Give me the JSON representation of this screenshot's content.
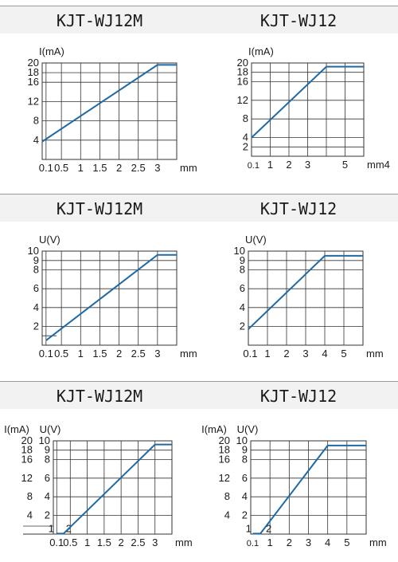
{
  "section_titles": [
    [
      "KJT-WJ12M",
      "KJT-WJ12"
    ],
    [
      "KJT-WJ12M",
      "KJT-WJ12"
    ],
    [
      "KJT-WJ12M",
      "KJT-WJ12"
    ]
  ],
  "colors": {
    "line": "#1f6aa5",
    "grid": "#333333",
    "band": "#f2f2f2"
  },
  "chart_data": [
    {
      "type": "line",
      "title": "KJT-WJ12M",
      "xlabel": "mm",
      "ylabel": "I(mA)",
      "xlim": [
        0,
        3.5
      ],
      "ylim": [
        0,
        20
      ],
      "xticks": [
        {
          "v": 0.1,
          "t": "0.1"
        },
        {
          "v": 0.5,
          "t": "0.5"
        },
        {
          "v": 1,
          "t": "1"
        },
        {
          "v": 1.5,
          "t": "1.5"
        },
        {
          "v": 2,
          "t": "2"
        },
        {
          "v": 2.5,
          "t": "2.5"
        },
        {
          "v": 3,
          "t": "3"
        }
      ],
      "yticks": [
        {
          "v": 4,
          "t": "4"
        },
        {
          "v": 8,
          "t": "8"
        },
        {
          "v": 12,
          "t": "12"
        },
        {
          "v": 16,
          "t": "16"
        },
        {
          "v": 18,
          "t": "18"
        },
        {
          "v": 20,
          "t": "20"
        }
      ],
      "series": [
        {
          "x": [
            0,
            3,
            3.5
          ],
          "y": [
            3.7,
            19.6,
            19.6
          ]
        }
      ]
    },
    {
      "type": "line",
      "title": "KJT-WJ12",
      "xlabel": "mm4",
      "ylabel": "I(mA)",
      "xlim": [
        0,
        6
      ],
      "ylim": [
        0,
        20
      ],
      "xticks": [
        {
          "v": 0.1,
          "t": "0.1",
          "small": true
        },
        {
          "v": 1,
          "t": "1"
        },
        {
          "v": 2,
          "t": "2"
        },
        {
          "v": 3,
          "t": "3"
        },
        {
          "v": 5,
          "t": "5"
        }
      ],
      "yticks": [
        {
          "v": 2,
          "t": "2"
        },
        {
          "v": 4,
          "t": "4"
        },
        {
          "v": 8,
          "t": "8"
        },
        {
          "v": 12,
          "t": "12"
        },
        {
          "v": 16,
          "t": "16"
        },
        {
          "v": 18,
          "t": "18"
        },
        {
          "v": 20,
          "t": "20"
        }
      ],
      "series": [
        {
          "x": [
            0,
            4,
            6
          ],
          "y": [
            4,
            19.2,
            19.2
          ]
        }
      ]
    },
    {
      "type": "line",
      "title": "KJT-WJ12M",
      "xlabel": "mm",
      "ylabel": "U(V)",
      "xlim": [
        0,
        3.5
      ],
      "ylim": [
        0,
        10
      ],
      "xticks": [
        {
          "v": 0.1,
          "t": "0.1"
        },
        {
          "v": 0.5,
          "t": "0.5"
        },
        {
          "v": 1,
          "t": "1"
        },
        {
          "v": 1.5,
          "t": "1.5"
        },
        {
          "v": 2,
          "t": "2"
        },
        {
          "v": 2.5,
          "t": "2.5"
        },
        {
          "v": 3,
          "t": "3"
        }
      ],
      "yticks": [
        {
          "v": 2,
          "t": "2"
        },
        {
          "v": 4,
          "t": "4"
        },
        {
          "v": 6,
          "t": "6"
        },
        {
          "v": 8,
          "t": "8"
        },
        {
          "v": 9,
          "t": "9"
        },
        {
          "v": 10,
          "t": "10"
        }
      ],
      "series": [
        {
          "x": [
            0.1,
            3,
            3.5
          ],
          "y": [
            0.5,
            9.6,
            9.6
          ]
        }
      ]
    },
    {
      "type": "line",
      "title": "KJT-WJ12",
      "xlabel": "mm",
      "ylabel": "U(V)",
      "xlim": [
        0,
        6
      ],
      "ylim": [
        0,
        10
      ],
      "xticks": [
        {
          "v": 0.1,
          "t": "0.1"
        },
        {
          "v": 1,
          "t": "1"
        },
        {
          "v": 2,
          "t": "2"
        },
        {
          "v": 3,
          "t": "3"
        },
        {
          "v": 4,
          "t": "4"
        },
        {
          "v": 5,
          "t": "5"
        }
      ],
      "yticks": [
        {
          "v": 2,
          "t": "2"
        },
        {
          "v": 4,
          "t": "4"
        },
        {
          "v": 6,
          "t": "6"
        },
        {
          "v": 8,
          "t": "8"
        },
        {
          "v": 9,
          "t": "9"
        },
        {
          "v": 10,
          "t": "10"
        }
      ],
      "series": [
        {
          "x": [
            0,
            4,
            6
          ],
          "y": [
            1.7,
            9.5,
            9.5
          ]
        }
      ]
    },
    {
      "type": "line",
      "title": "KJT-WJ12M",
      "xlabel": "mm",
      "ylabel": "I(mA)",
      "ylabel2": "U(V)",
      "xlim": [
        0,
        3.5
      ],
      "ylim": [
        0,
        10
      ],
      "xticks": [
        {
          "v": 0.1,
          "t": "0.1"
        },
        {
          "v": 0.5,
          "t": "0.5"
        },
        {
          "v": 1,
          "t": "1"
        },
        {
          "v": 1.5,
          "t": "1.5"
        },
        {
          "v": 2,
          "t": "2"
        },
        {
          "v": 2.5,
          "t": "2.5"
        },
        {
          "v": 3,
          "t": "3"
        }
      ],
      "yticks": [
        {
          "v": 2,
          "t": "2"
        },
        {
          "v": 4,
          "t": "4"
        },
        {
          "v": 6,
          "t": "6"
        },
        {
          "v": 8,
          "t": "8"
        },
        {
          "v": 9,
          "t": "9"
        },
        {
          "v": 10,
          "t": "10"
        }
      ],
      "yticks_outer": [
        {
          "v": 2,
          "t": "4"
        },
        {
          "v": 4,
          "t": "8"
        },
        {
          "v": 6,
          "t": "12"
        },
        {
          "v": 8,
          "t": "16"
        },
        {
          "v": 9,
          "t": "18"
        },
        {
          "v": 10,
          "t": "20"
        }
      ],
      "inner_labels": [
        {
          "x": 0.03,
          "y": 0.05,
          "t": "1"
        },
        {
          "x": 0.55,
          "y": 0.05,
          "t": "2"
        }
      ],
      "series": [
        {
          "x": [
            0.1,
            0.3,
            3,
            3.5
          ],
          "y": [
            0.05,
            0.05,
            9.6,
            9.6
          ]
        }
      ]
    },
    {
      "type": "line",
      "title": "KJT-WJ12",
      "xlabel": "mm",
      "ylabel": "I(mA)",
      "ylabel2": "U(V)",
      "xlim": [
        0,
        6
      ],
      "ylim": [
        0,
        10
      ],
      "xticks": [
        {
          "v": 0.1,
          "t": "0.1",
          "small": true
        },
        {
          "v": 1,
          "t": "1"
        },
        {
          "v": 2,
          "t": "2"
        },
        {
          "v": 3,
          "t": "3"
        },
        {
          "v": 4,
          "t": "4"
        },
        {
          "v": 5,
          "t": "5"
        }
      ],
      "yticks": [
        {
          "v": 2,
          "t": "2"
        },
        {
          "v": 4,
          "t": "4"
        },
        {
          "v": 6,
          "t": "6"
        },
        {
          "v": 8,
          "t": "8"
        },
        {
          "v": 9,
          "t": "9"
        },
        {
          "v": 10,
          "t": "10"
        }
      ],
      "yticks_outer": [
        {
          "v": 2,
          "t": "4"
        },
        {
          "v": 4,
          "t": "8"
        },
        {
          "v": 6,
          "t": "12"
        },
        {
          "v": 8,
          "t": "16"
        },
        {
          "v": 9,
          "t": "18"
        },
        {
          "v": 10,
          "t": "20"
        }
      ],
      "inner_labels": [
        {
          "x": 0.05,
          "y": 0.05,
          "t": "1"
        },
        {
          "x": 1.1,
          "y": 0.05,
          "t": "2"
        }
      ],
      "series": [
        {
          "x": [
            0.1,
            0.5,
            4,
            6
          ],
          "y": [
            0.05,
            0.05,
            9.5,
            9.5
          ]
        }
      ]
    }
  ]
}
